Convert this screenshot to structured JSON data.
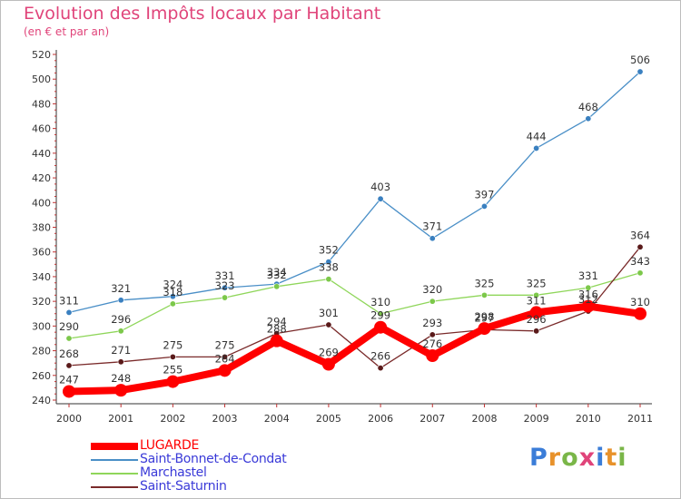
{
  "header": {
    "title": "Evolution des Impôts locaux par Habitant",
    "subtitle": "(en € et par an)"
  },
  "brand": {
    "text": "Proxiti",
    "colors": [
      "#3b7dd8",
      "#e8922b",
      "#7ab648",
      "#e0447a",
      "#3b7dd8",
      "#e8922b",
      "#7ab648"
    ]
  },
  "chart_data": {
    "type": "line",
    "x": [
      "2000",
      "2001",
      "2002",
      "2003",
      "2004",
      "2005",
      "2006",
      "2007",
      "2008",
      "2009",
      "2010",
      "2011"
    ],
    "ylim": [
      240,
      520
    ],
    "yticks": [
      240,
      260,
      280,
      300,
      320,
      340,
      360,
      380,
      400,
      420,
      440,
      460,
      480,
      500,
      520
    ],
    "grid": false,
    "legend_position": "bottom-left",
    "series": [
      {
        "name": "Saint-Bonnet-de-Condat",
        "color": "#4a8fc7",
        "marker": "#3a80c0",
        "values": [
          311,
          321,
          324,
          331,
          334,
          352,
          403,
          371,
          397,
          444,
          468,
          506
        ],
        "labels": [
          "311",
          "321",
          "324",
          "331",
          "334",
          "352",
          "403",
          "371",
          "397",
          "444",
          "468",
          "506"
        ]
      },
      {
        "name": "Marchastel",
        "color": "#8fd65a",
        "marker": "#7cc84a",
        "values": [
          290,
          296,
          318,
          323,
          332,
          338,
          310,
          320,
          325,
          325,
          331,
          343
        ],
        "labels": [
          "290",
          "296",
          "318",
          "323",
          "332",
          "338",
          "310",
          "320",
          "325",
          "325",
          "331",
          "343"
        ]
      },
      {
        "name": "Saint-Saturnin",
        "color": "#7a2a2a",
        "marker": "#5a1a1a",
        "values": [
          268,
          271,
          275,
          275,
          294,
          301,
          266,
          293,
          297,
          296,
          312,
          364
        ],
        "labels": [
          "268",
          "271",
          "275",
          "275",
          "294",
          "301",
          "266",
          "293",
          "297",
          "296",
          "312",
          "364"
        ]
      },
      {
        "name": "LUGARDE",
        "color": "#ff0000",
        "marker": "#ff0000",
        "values": [
          247,
          248,
          255,
          264,
          288,
          269,
          299,
          276,
          298,
          311,
          316,
          310
        ],
        "labels": [
          "247",
          "248",
          "255",
          "264",
          "288",
          "269",
          "299",
          "276",
          "298",
          "311",
          "316",
          "310"
        ]
      }
    ],
    "legend_order": [
      "LUGARDE",
      "Saint-Bonnet-de-Condat",
      "Marchastel",
      "Saint-Saturnin"
    ]
  }
}
